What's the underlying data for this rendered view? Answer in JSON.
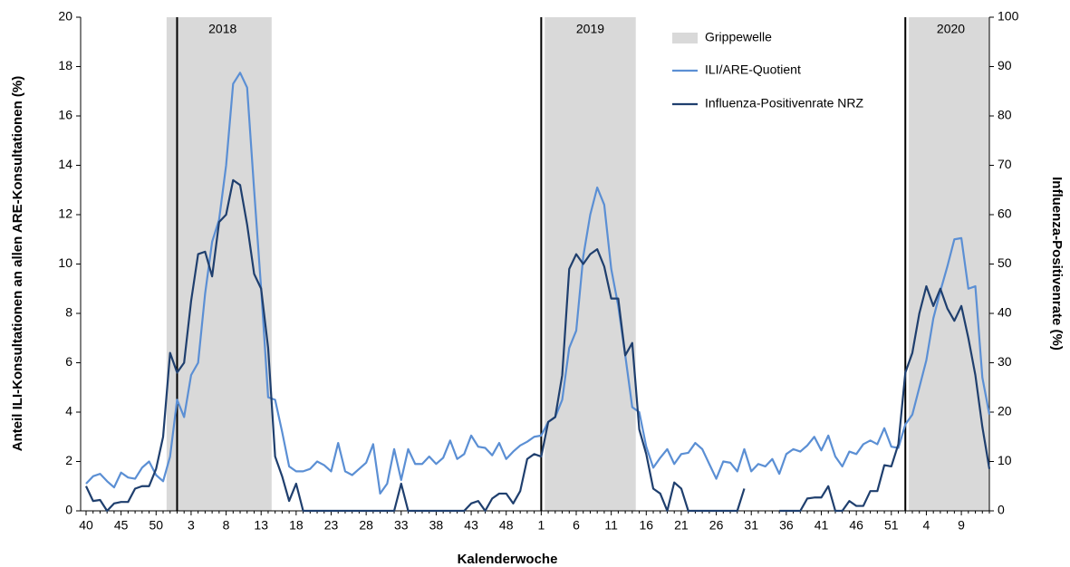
{
  "chart_data": {
    "type": "line",
    "y_label": "Anteil ILI-Konsultationen an allen ARE-Konsultationen (%)",
    "y2_label": "Influenza-Positivenrate (%)",
    "x_label": "Kalenderwoche",
    "categories": [
      "40",
      null,
      null,
      null,
      null,
      "45",
      null,
      null,
      null,
      null,
      "50",
      null,
      null,
      null,
      null,
      "3",
      null,
      null,
      null,
      null,
      "8",
      null,
      null,
      null,
      null,
      "13",
      null,
      null,
      null,
      null,
      "18",
      null,
      null,
      null,
      null,
      "23",
      null,
      null,
      null,
      null,
      "28",
      null,
      null,
      null,
      null,
      "33",
      null,
      null,
      null,
      null,
      "38",
      null,
      null,
      null,
      null,
      "43",
      null,
      null,
      null,
      null,
      "48",
      null,
      null,
      null,
      null,
      "1",
      null,
      null,
      null,
      null,
      "6",
      null,
      null,
      null,
      null,
      "11",
      null,
      null,
      null,
      null,
      "16",
      null,
      null,
      null,
      null,
      "21",
      null,
      null,
      null,
      null,
      "26",
      null,
      null,
      null,
      null,
      "31",
      null,
      null,
      null,
      null,
      "36",
      null,
      null,
      null,
      null,
      "41",
      null,
      null,
      null,
      null,
      "46",
      null,
      null,
      null,
      null,
      "51",
      null,
      null,
      null,
      null,
      "4",
      null,
      null,
      null,
      null,
      "9",
      null,
      null,
      null,
      null
    ],
    "waves": {
      "name": "Grippewelle",
      "color": "#d9d9d9",
      "items": [
        {
          "label": "2018",
          "start": 12,
          "end": 26,
          "year_line": 13
        },
        {
          "label": "2019",
          "start": 66,
          "end": 78,
          "year_line": 65
        },
        {
          "label": "2020",
          "start": 118,
          "end": 129,
          "year_line": 117
        }
      ]
    },
    "series": [
      {
        "name": "ILI/ARE-Quotient",
        "color": "#5b8fd4",
        "axis": "y",
        "values": [
          1.1,
          1.4,
          1.5,
          1.2,
          0.95,
          1.55,
          1.35,
          1.3,
          1.75,
          2.0,
          1.45,
          1.2,
          2.2,
          4.5,
          3.8,
          5.5,
          6.0,
          8.8,
          10.9,
          11.8,
          14.0,
          17.3,
          17.75,
          17.15,
          13.0,
          9.0,
          4.6,
          4.5,
          3.2,
          1.8,
          1.6,
          1.6,
          1.7,
          2.0,
          1.85,
          1.6,
          2.75,
          1.6,
          1.45,
          1.7,
          1.95,
          2.7,
          0.7,
          1.1,
          2.5,
          1.25,
          2.5,
          1.9,
          1.9,
          2.2,
          1.9,
          2.15,
          2.85,
          2.1,
          2.3,
          3.05,
          2.6,
          2.55,
          2.25,
          2.75,
          2.1,
          2.4,
          2.65,
          2.8,
          3.0,
          3.05,
          3.6,
          3.8,
          4.5,
          6.6,
          7.3,
          10.3,
          12.0,
          13.1,
          12.4,
          9.8,
          8.3,
          6.3,
          4.2,
          4.0,
          2.6,
          1.75,
          2.15,
          2.5,
          1.9,
          2.3,
          2.35,
          2.75,
          2.5,
          1.9,
          1.3,
          2.0,
          1.95,
          1.6,
          2.5,
          1.6,
          1.9,
          1.8,
          2.1,
          1.5,
          2.3,
          2.5,
          2.4,
          2.65,
          3.0,
          2.45,
          3.05,
          2.2,
          1.8,
          2.4,
          2.3,
          2.7,
          2.85,
          2.7,
          3.35,
          2.6,
          2.55,
          3.5,
          3.9,
          5.0,
          6.1,
          7.8,
          8.9,
          9.9,
          11.0,
          11.05,
          9.0,
          9.1,
          5.4,
          3.9
        ]
      },
      {
        "name": "Influenza-Positivenrate NRZ",
        "color": "#1f3f6e",
        "axis": "y2",
        "values": [
          5,
          2,
          2.2,
          0,
          1.5,
          1.8,
          1.8,
          4.5,
          5,
          5,
          8.5,
          15,
          32,
          28,
          30,
          42.5,
          52,
          52.5,
          47.5,
          58.5,
          60,
          67,
          66,
          58,
          48,
          45,
          33,
          11,
          7,
          2,
          5.5,
          0,
          0,
          0,
          0,
          0,
          0,
          0,
          0,
          0,
          0,
          0,
          0,
          0,
          0,
          5.5,
          0,
          0,
          0,
          0,
          0,
          0,
          0,
          0,
          0,
          1.5,
          2,
          0,
          2.5,
          3.5,
          3.5,
          1.5,
          4,
          10.5,
          11.5,
          11,
          18,
          19,
          27.5,
          49,
          52,
          50,
          52,
          53,
          49.5,
          43,
          43,
          31.5,
          34,
          16.5,
          11.5,
          4.5,
          3.5,
          0,
          5.75,
          4.5,
          0,
          0,
          0,
          0,
          0,
          0,
          0,
          0,
          4.5,
          null,
          null,
          null,
          null,
          0,
          0,
          0,
          0,
          2.5,
          2.7,
          2.7,
          5,
          0,
          0,
          2,
          1,
          1,
          4,
          4,
          9.25,
          9,
          13.5,
          28,
          32,
          40,
          45.5,
          41.5,
          45,
          41,
          38.5,
          41.5,
          35,
          27.5,
          17,
          8.5
        ]
      }
    ],
    "ylim": [
      0,
      20
    ],
    "yticks": [
      0,
      2,
      4,
      6,
      8,
      10,
      12,
      14,
      16,
      18,
      20
    ],
    "y2lim": [
      0,
      100
    ],
    "y2ticks": [
      0,
      10,
      20,
      30,
      40,
      50,
      60,
      70,
      80,
      90,
      100
    ],
    "grid": false
  }
}
